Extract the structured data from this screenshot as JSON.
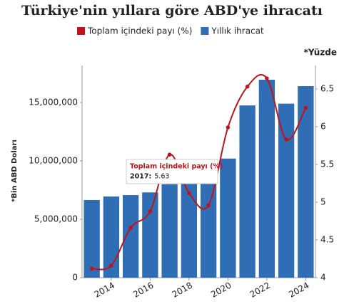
{
  "chart_data": {
    "type": "bar-line",
    "title": "Türkiye'nin yıllara göre ABD'ye ihracatı",
    "y_label": "*Bin ABD Doları",
    "y2_label": "*Yüzde",
    "categories": [
      null,
      "2014",
      null,
      "2016",
      null,
      "2018",
      null,
      "2020",
      null,
      "2022",
      null,
      "2024"
    ],
    "series": [
      {
        "name": "Yıllık ihracat",
        "color": "#2f6db5",
        "kind": "bar",
        "values": [
          6650000,
          6950000,
          7070000,
          7300000,
          8000000,
          8300000,
          9000000,
          10200000,
          14750000,
          16950000,
          14900000,
          16400000
        ]
      },
      {
        "name": "Toplam içindeki payı (%)",
        "color": "#c0141c",
        "kind": "line",
        "axis": "y2",
        "values": [
          4.12,
          4.16,
          4.66,
          4.88,
          5.63,
          5.12,
          4.96,
          5.99,
          6.53,
          6.64,
          5.83,
          6.25
        ]
      }
    ],
    "legend_order": [
      1,
      0
    ],
    "ylim": [
      0,
      18170000
    ],
    "yticks": [
      0,
      {
        "value": 5000000,
        "label": "5,000,000"
      },
      {
        "value": 10000000,
        "label": "10,000,000"
      },
      {
        "value": 15000000,
        "label": "15,000,000"
      }
    ],
    "y2lim": [
      4,
      6.81
    ],
    "y2ticks": [
      4,
      4.5,
      5,
      5.5,
      6,
      6.5
    ],
    "tooltip": {
      "title": "Toplam içindeki payı (%)",
      "category": "2017:",
      "index": 4
    }
  }
}
